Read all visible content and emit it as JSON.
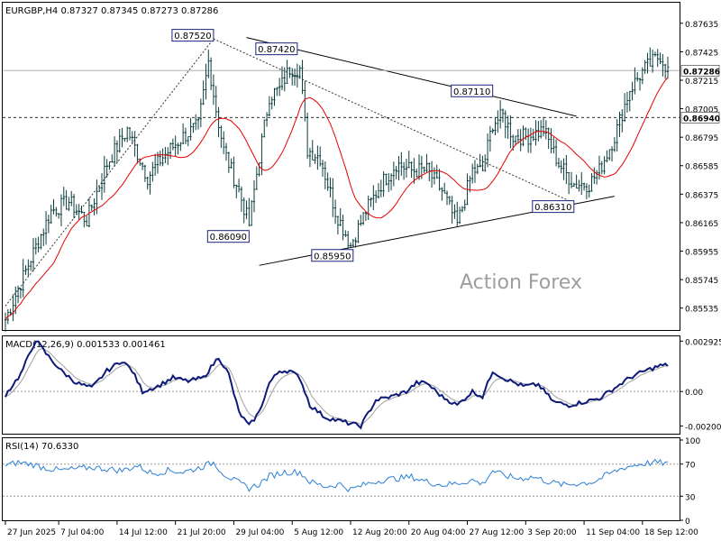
{
  "chart_data": [
    {
      "type": "candlestick",
      "title": "EURGBP,H4  0.87327 0.87345 0.87273 0.87286",
      "ylim": [
        0.8538,
        0.8778
      ],
      "price_ticks": [
        "0.87635",
        "0.87425",
        "0.87215",
        "0.87005",
        "0.86795",
        "0.86585",
        "0.86375",
        "0.86165",
        "0.85955",
        "0.85745",
        "0.85535"
      ],
      "x_ticks": [
        {
          "label": "27 Jun 2025",
          "bar": 0
        },
        {
          "label": "7 Jul 04:00",
          "bar": 21
        },
        {
          "label": "14 Jul 12:00",
          "bar": 44
        },
        {
          "label": "21 Jul 20:00",
          "bar": 67
        },
        {
          "label": "29 Jul 04:00",
          "bar": 90
        },
        {
          "label": "5 Aug 12:00",
          "bar": 113
        },
        {
          "label": "12 Aug 20:00",
          "bar": 136
        },
        {
          "label": "20 Aug 04:00",
          "bar": 159
        },
        {
          "label": "27 Aug 12:00",
          "bar": 182
        },
        {
          "label": "3 Sep 20:00",
          "bar": 205
        },
        {
          "label": "11 Sep 04:00",
          "bar": 228
        },
        {
          "label": "18 Sep 12:00",
          "bar": 251
        }
      ],
      "bar_count": 262,
      "close_anchors": [
        [
          0,
          0.8545
        ],
        [
          10,
          0.859
        ],
        [
          18,
          0.8625
        ],
        [
          25,
          0.8632
        ],
        [
          32,
          0.8618
        ],
        [
          40,
          0.866
        ],
        [
          48,
          0.8685
        ],
        [
          56,
          0.865
        ],
        [
          62,
          0.8665
        ],
        [
          70,
          0.868
        ],
        [
          76,
          0.8688
        ],
        [
          80,
          0.8735
        ],
        [
          83,
          0.87
        ],
        [
          86,
          0.867
        ],
        [
          92,
          0.864
        ],
        [
          96,
          0.8615
        ],
        [
          100,
          0.8665
        ],
        [
          104,
          0.871
        ],
        [
          108,
          0.8715
        ],
        [
          112,
          0.873
        ],
        [
          116,
          0.873
        ],
        [
          119,
          0.867
        ],
        [
          124,
          0.8665
        ],
        [
          130,
          0.8625
        ],
        [
          136,
          0.86
        ],
        [
          142,
          0.8625
        ],
        [
          148,
          0.8645
        ],
        [
          154,
          0.866
        ],
        [
          160,
          0.8655
        ],
        [
          166,
          0.8655
        ],
        [
          172,
          0.864
        ],
        [
          178,
          0.8615
        ],
        [
          184,
          0.8655
        ],
        [
          188,
          0.8655
        ],
        [
          192,
          0.869
        ],
        [
          196,
          0.8695
        ],
        [
          200,
          0.868
        ],
        [
          206,
          0.868
        ],
        [
          212,
          0.8685
        ],
        [
          218,
          0.866
        ],
        [
          224,
          0.8645
        ],
        [
          230,
          0.8645
        ],
        [
          234,
          0.8655
        ],
        [
          240,
          0.868
        ],
        [
          246,
          0.8715
        ],
        [
          252,
          0.873
        ],
        [
          258,
          0.874
        ],
        [
          261,
          0.87286
        ]
      ],
      "fib_levels": [
        {
          "label": "0.86940",
          "value": 0.8694
        }
      ],
      "current_price": {
        "label": "0.87286",
        "value": 0.87286
      },
      "annotations": [
        {
          "label": "0.87520",
          "bar": 82,
          "value": 0.8752
        },
        {
          "label": "0.87420",
          "bar": 115,
          "value": 0.8742
        },
        {
          "label": "0.86090",
          "bar": 96,
          "value": 0.8609
        },
        {
          "label": "0.85950",
          "bar": 137,
          "value": 0.8595
        },
        {
          "label": "0.87110",
          "bar": 192,
          "value": 0.8711
        },
        {
          "label": "0.86310",
          "bar": 224,
          "value": 0.8631
        }
      ],
      "trendlines": [
        {
          "from": [
            95,
            0.8753
          ],
          "to": [
            225,
            0.8695
          ]
        },
        {
          "from": [
            100,
            0.8585
          ],
          "to": [
            240,
            0.8636
          ]
        }
      ],
      "dotted_lines": [
        {
          "from": [
            0,
            0.8555
          ],
          "to": [
            82,
            0.8752
          ]
        },
        {
          "from": [
            82,
            0.8752
          ],
          "to": [
            224,
            0.8631
          ]
        }
      ],
      "ma_color": "#e60000",
      "candle_color": "#0b3d3d",
      "watermark": "Action Forex"
    },
    {
      "type": "line",
      "title": "MACD(12,26,9) 0.001533 0.001461",
      "ylim": [
        -0.0024,
        0.0031
      ],
      "ticks": [
        "0.002925",
        "0.00",
        "-0.002002"
      ],
      "macd_anchors": [
        [
          0,
          -0.0002
        ],
        [
          6,
          0.001
        ],
        [
          12,
          0.003
        ],
        [
          16,
          0.0022
        ],
        [
          22,
          0.0012
        ],
        [
          28,
          0.0005
        ],
        [
          34,
          0.0002
        ],
        [
          40,
          0.0012
        ],
        [
          46,
          0.0018
        ],
        [
          50,
          0.0012
        ],
        [
          54,
          0.0
        ],
        [
          60,
          0.0003
        ],
        [
          66,
          0.0008
        ],
        [
          72,
          0.0006
        ],
        [
          78,
          0.0008
        ],
        [
          84,
          0.002
        ],
        [
          88,
          0.001
        ],
        [
          92,
          -0.0012
        ],
        [
          96,
          -0.002
        ],
        [
          100,
          -0.0012
        ],
        [
          104,
          0.0005
        ],
        [
          108,
          0.0012
        ],
        [
          112,
          0.0012
        ],
        [
          116,
          0.0008
        ],
        [
          120,
          -0.0008
        ],
        [
          126,
          -0.0015
        ],
        [
          134,
          -0.0018
        ],
        [
          140,
          -0.002
        ],
        [
          146,
          -0.0005
        ],
        [
          152,
          -0.0003
        ],
        [
          158,
          0.0
        ],
        [
          162,
          0.0005
        ],
        [
          166,
          0.0005
        ],
        [
          172,
          -0.0003
        ],
        [
          178,
          -0.0008
        ],
        [
          184,
          0.0
        ],
        [
          188,
          -0.0003
        ],
        [
          192,
          0.0012
        ],
        [
          196,
          0.0008
        ],
        [
          204,
          0.0003
        ],
        [
          210,
          0.0004
        ],
        [
          216,
          -0.0006
        ],
        [
          222,
          -0.0008
        ],
        [
          228,
          -0.0006
        ],
        [
          234,
          -0.0004
        ],
        [
          240,
          0.0002
        ],
        [
          246,
          0.0008
        ],
        [
          252,
          0.0012
        ],
        [
          258,
          0.0015
        ],
        [
          261,
          0.001533
        ]
      ],
      "signal_lag": 6
    },
    {
      "type": "line",
      "title": "RSI(14) 70.6330",
      "ylim": [
        0,
        100
      ],
      "ticks": [
        "100",
        "70",
        "30",
        "0"
      ],
      "levels": [
        70,
        30
      ],
      "line_color": "#2a7fd4",
      "rsi_anchors": [
        [
          0,
          68
        ],
        [
          5,
          72
        ],
        [
          10,
          70
        ],
        [
          16,
          65
        ],
        [
          22,
          62
        ],
        [
          28,
          64
        ],
        [
          34,
          66
        ],
        [
          40,
          64
        ],
        [
          46,
          62
        ],
        [
          52,
          68
        ],
        [
          58,
          58
        ],
        [
          64,
          62
        ],
        [
          70,
          60
        ],
        [
          76,
          65
        ],
        [
          82,
          72
        ],
        [
          86,
          58
        ],
        [
          90,
          50
        ],
        [
          96,
          40
        ],
        [
          100,
          45
        ],
        [
          104,
          55
        ],
        [
          110,
          60
        ],
        [
          116,
          60
        ],
        [
          120,
          48
        ],
        [
          126,
          42
        ],
        [
          132,
          45
        ],
        [
          136,
          38
        ],
        [
          142,
          45
        ],
        [
          148,
          50
        ],
        [
          154,
          52
        ],
        [
          160,
          54
        ],
        [
          166,
          48
        ],
        [
          172,
          44
        ],
        [
          178,
          46
        ],
        [
          184,
          50
        ],
        [
          188,
          45
        ],
        [
          192,
          62
        ],
        [
          196,
          56
        ],
        [
          202,
          52
        ],
        [
          208,
          54
        ],
        [
          214,
          48
        ],
        [
          220,
          44
        ],
        [
          226,
          46
        ],
        [
          232,
          48
        ],
        [
          238,
          58
        ],
        [
          244,
          66
        ],
        [
          250,
          70
        ],
        [
          256,
          72
        ],
        [
          261,
          70.633
        ]
      ]
    }
  ]
}
